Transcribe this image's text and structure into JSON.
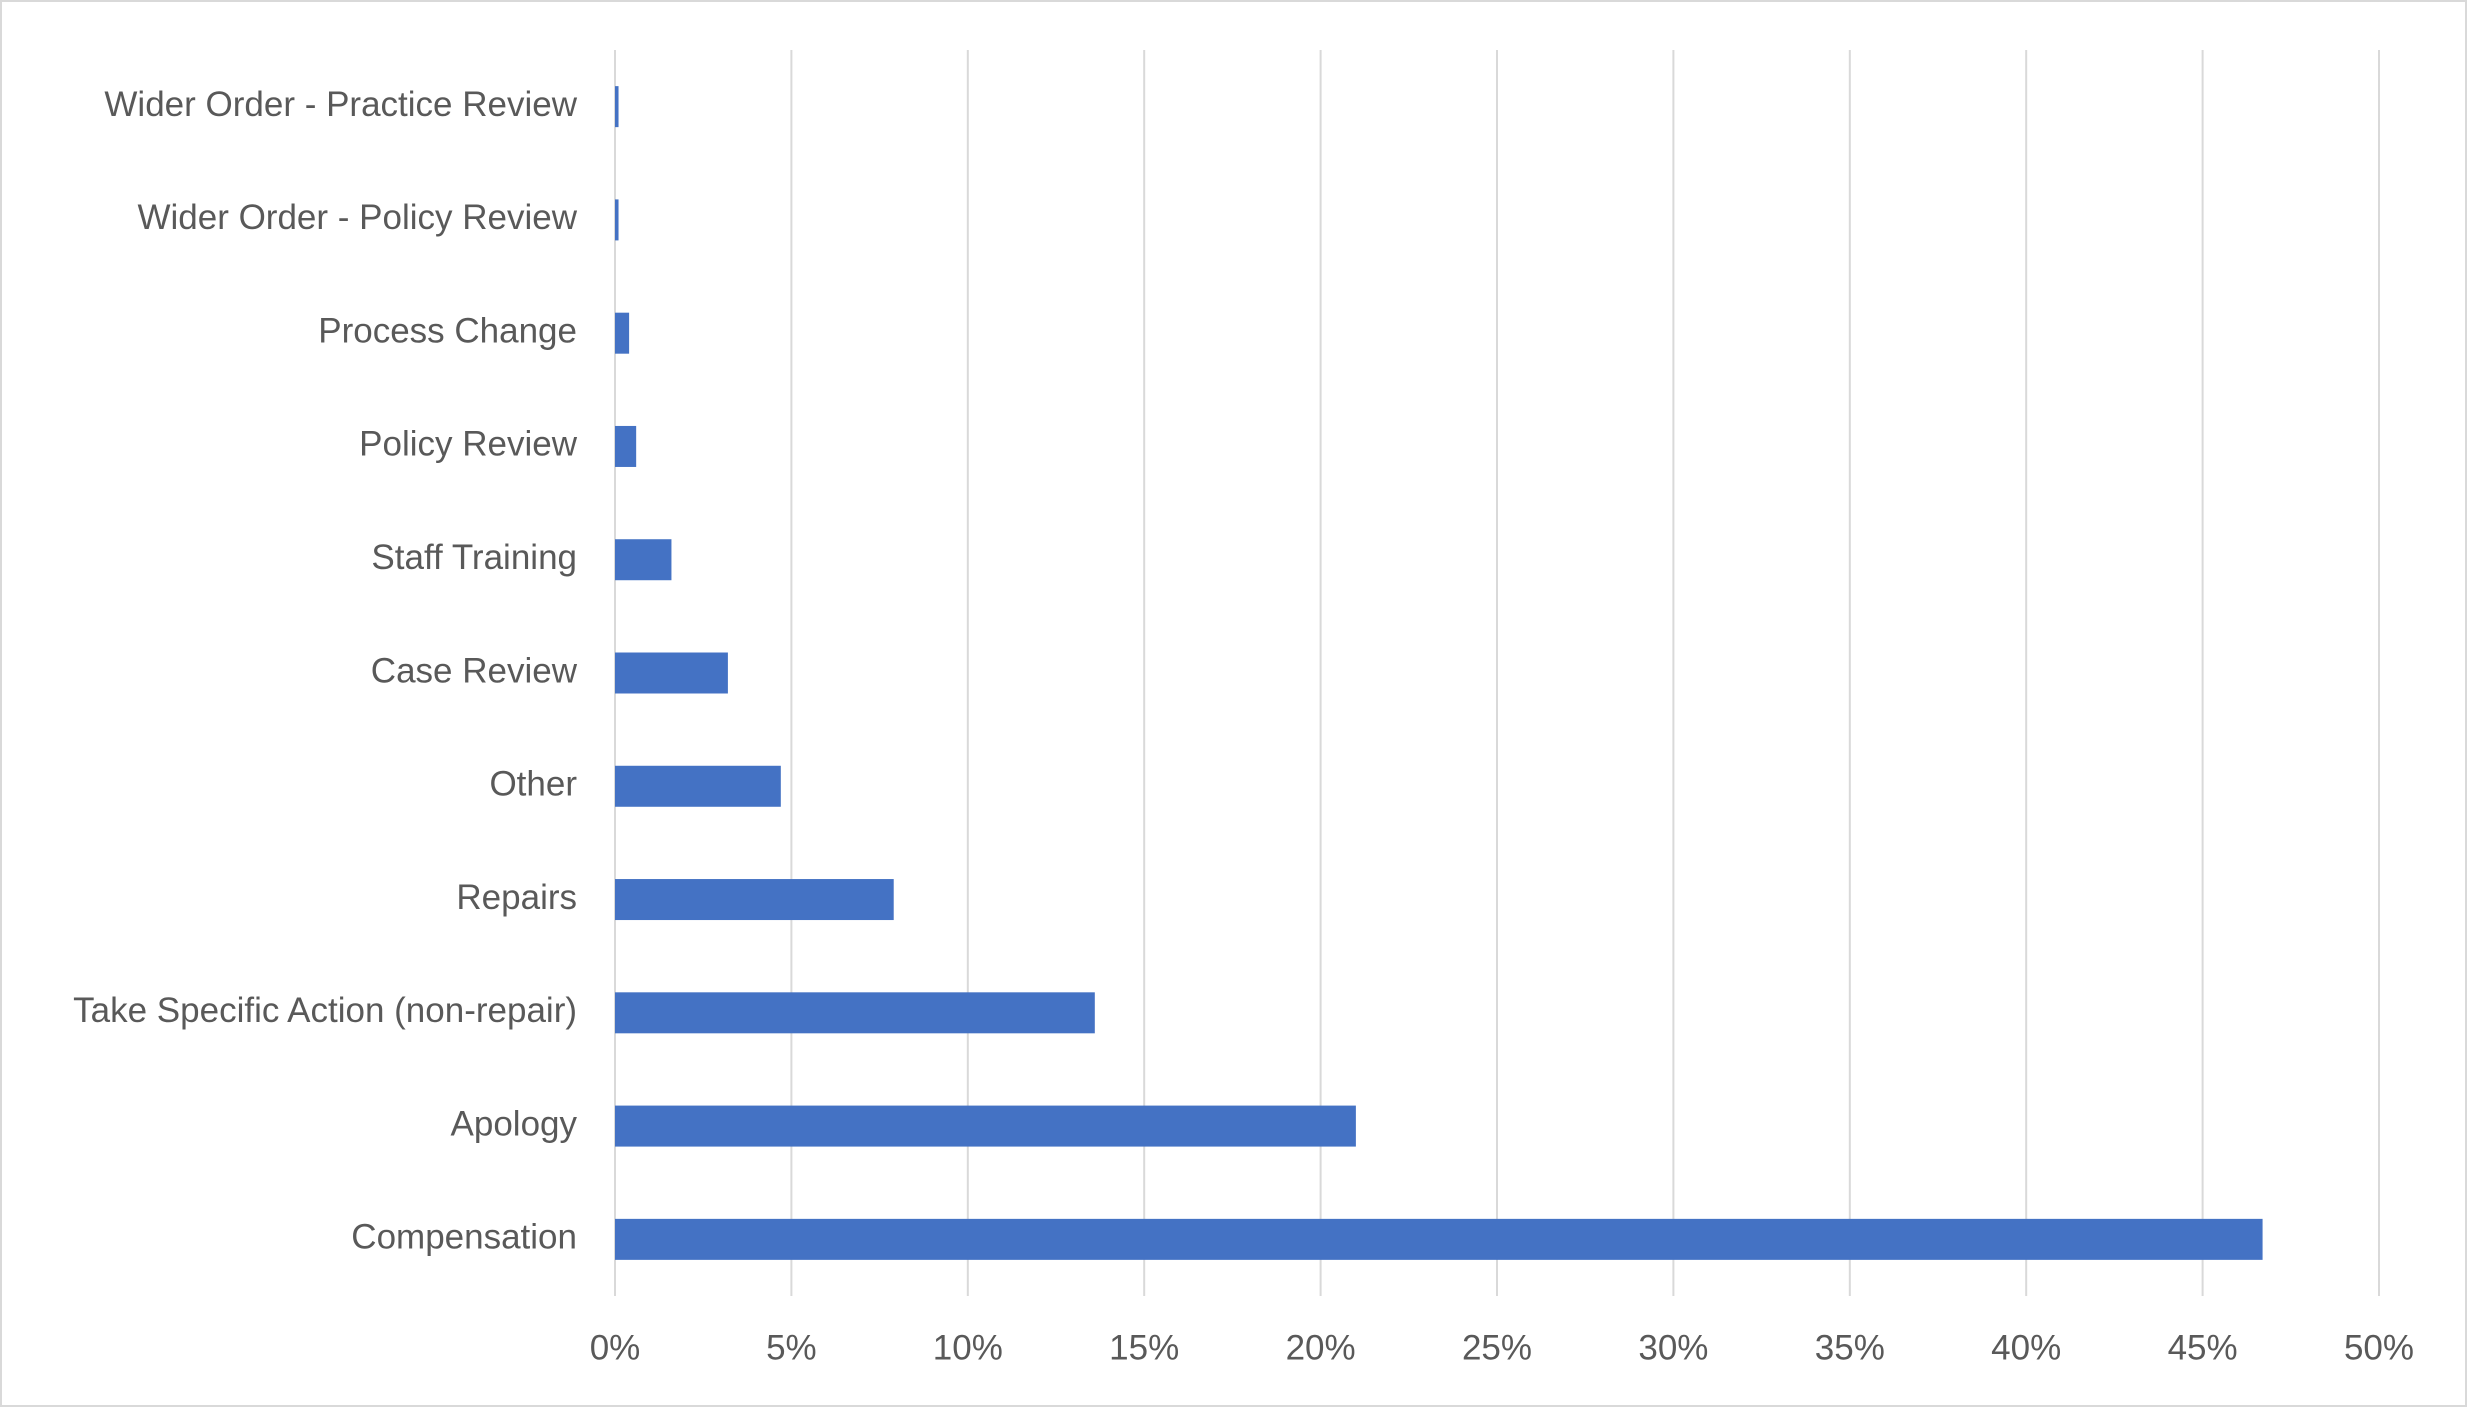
{
  "chart_data": {
    "type": "hbar",
    "categories": [
      "Wider Order - Practice Review",
      "Wider Order - Policy Review",
      "Process Change",
      "Policy Review",
      "Staff Training",
      "Case Review",
      "Other",
      "Repairs",
      "Take Specific Action (non-repair)",
      "Apology",
      "Compensation"
    ],
    "values": [
      0.1,
      0.1,
      0.4,
      0.6,
      1.6,
      3.2,
      4.7,
      7.9,
      13.6,
      21.0,
      46.7
    ],
    "color": "#4472c4",
    "xlim": [
      0,
      50
    ],
    "xticks": [
      {
        "value": 0,
        "label": "0%"
      },
      {
        "value": 5,
        "label": "5%"
      },
      {
        "value": 10,
        "label": "10%"
      },
      {
        "value": 15,
        "label": "15%"
      },
      {
        "value": 20,
        "label": "20%"
      },
      {
        "value": 25,
        "label": "25%"
      },
      {
        "value": 30,
        "label": "30%"
      },
      {
        "value": 35,
        "label": "35%"
      },
      {
        "value": 40,
        "label": "40%"
      },
      {
        "value": 45,
        "label": "45%"
      },
      {
        "value": 50,
        "label": "50%"
      }
    ],
    "grid": true
  }
}
